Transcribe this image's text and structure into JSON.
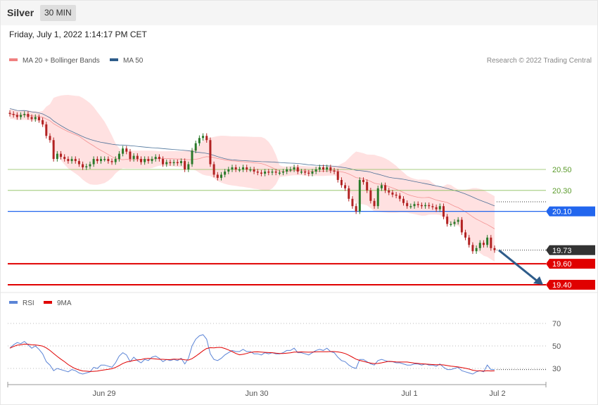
{
  "header": {
    "instrument": "Silver",
    "timeframe": "30 MIN"
  },
  "timestamp": "Friday, July 1, 2022 1:14:17 PM CET",
  "legend": {
    "bb": {
      "label": "MA 20 + Bollinger Bands",
      "color": "#f08080"
    },
    "ma50": {
      "label": "MA 50",
      "color": "#2e5c8a"
    },
    "rsi": {
      "label": "RSI",
      "color": "#5b84d6"
    },
    "ma9": {
      "label": "9MA",
      "color": "#e00000"
    }
  },
  "credit": "Research © 2022 Trading Central",
  "colors": {
    "up": "#2a7a2a",
    "down": "#b22222",
    "resistance": "#8bbf5a",
    "pivot": "#2266ee",
    "support": "#e00000",
    "last": "#333333",
    "arrow": "#2e5c8a",
    "band": "#ffdede"
  },
  "chart_data": {
    "type": "candlestick",
    "price_range": [
      19.2,
      21.2
    ],
    "x_ticks": [
      "Jun 29",
      "Jun 30",
      "Jul 1",
      "Jul 2"
    ],
    "levels": [
      {
        "value": 20.5,
        "label": "20.50",
        "kind": "resistance"
      },
      {
        "value": 20.3,
        "label": "20.30",
        "kind": "resistance"
      },
      {
        "value": 20.1,
        "label": "20.10",
        "kind": "pivot"
      },
      {
        "value": 19.73,
        "label": "19.73",
        "kind": "last"
      },
      {
        "value": 19.6,
        "label": "19.60",
        "kind": "support"
      },
      {
        "value": 19.4,
        "label": "19.40",
        "kind": "support"
      }
    ],
    "arrow": {
      "from": 19.73,
      "to": 19.4
    },
    "closes": [
      21.03,
      21.02,
      21.0,
      21.02,
      21.03,
      21.0,
      20.98,
      21.0,
      20.97,
      20.93,
      20.82,
      20.78,
      20.6,
      20.65,
      20.62,
      20.6,
      20.58,
      20.6,
      20.58,
      20.55,
      20.52,
      20.53,
      20.55,
      20.6,
      20.58,
      20.6,
      20.6,
      20.58,
      20.57,
      20.6,
      20.65,
      20.7,
      20.67,
      20.6,
      20.63,
      20.6,
      20.57,
      20.6,
      20.58,
      20.6,
      20.62,
      20.6,
      20.55,
      20.57,
      20.56,
      20.57,
      20.56,
      20.58,
      20.5,
      20.55,
      20.68,
      20.75,
      20.8,
      20.82,
      20.78,
      20.55,
      20.45,
      20.42,
      20.45,
      20.48,
      20.5,
      20.52,
      20.5,
      20.5,
      20.52,
      20.5,
      20.5,
      20.48,
      20.47,
      20.46,
      20.48,
      20.47,
      20.48,
      20.47,
      20.47,
      20.48,
      20.5,
      20.5,
      20.52,
      20.48,
      20.48,
      20.47,
      20.46,
      20.48,
      20.5,
      20.52,
      20.5,
      20.52,
      20.49,
      20.48,
      20.4,
      20.35,
      20.32,
      20.22,
      20.15,
      20.1,
      20.4,
      20.38,
      20.3,
      20.2,
      20.15,
      20.32,
      20.35,
      20.3,
      20.28,
      20.26,
      20.25,
      20.22,
      20.18,
      20.15,
      20.15,
      20.17,
      20.16,
      20.15,
      20.16,
      20.15,
      20.14,
      20.12,
      20.15,
      20.05,
      19.98,
      19.98,
      20.0,
      20.02,
      19.9,
      19.85,
      19.78,
      19.72,
      19.75,
      19.8,
      19.78,
      19.85,
      19.75,
      19.73
    ],
    "rsi": [
      48,
      51,
      53,
      52,
      54,
      51,
      48,
      50,
      47,
      43,
      36,
      33,
      28,
      30,
      29,
      28,
      27,
      29,
      28,
      26,
      25,
      26,
      27,
      31,
      30,
      33,
      33,
      32,
      31,
      35,
      41,
      44,
      42,
      36,
      40,
      37,
      35,
      38,
      37,
      40,
      41,
      39,
      36,
      38,
      37,
      38,
      37,
      39,
      34,
      39,
      50,
      56,
      59,
      60,
      56,
      43,
      38,
      37,
      39,
      42,
      44,
      46,
      45,
      45,
      47,
      45,
      45,
      43,
      43,
      42,
      44,
      43,
      44,
      43,
      43,
      44,
      46,
      46,
      48,
      44,
      44,
      43,
      42,
      44,
      46,
      47,
      46,
      48,
      45,
      44,
      40,
      37,
      36,
      33,
      31,
      30,
      38,
      38,
      36,
      34,
      33,
      37,
      38,
      37,
      36,
      36,
      35,
      35,
      34,
      33,
      33,
      34,
      34,
      33,
      34,
      33,
      33,
      32,
      34,
      31,
      29,
      29,
      30,
      31,
      28,
      27,
      26,
      25,
      27,
      28,
      27,
      33,
      29,
      29
    ],
    "rsi_ticks": [
      70,
      50,
      30
    ],
    "rsi_range": [
      20,
      80
    ]
  }
}
